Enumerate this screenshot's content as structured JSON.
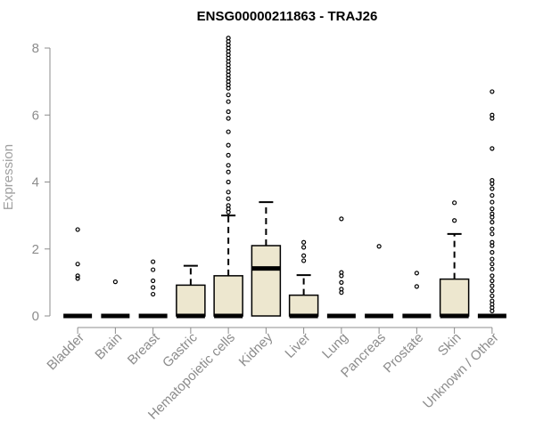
{
  "chart_data": {
    "type": "boxplot",
    "title": "ENSG00000211863 - TRAJ26",
    "xlabel": "",
    "ylabel": "Expression",
    "ylim": [
      0,
      8
    ],
    "yticks": [
      0,
      2,
      4,
      6,
      8
    ],
    "box_fill": "#ede7cf",
    "categories": [
      "Bladder",
      "Brain",
      "Breast",
      "Gastric",
      "Hematopoietic cells",
      "Kidney",
      "Liver",
      "Lung",
      "Pancreas",
      "Prostate",
      "Skin",
      "Unknown / Other"
    ],
    "groups": [
      {
        "name": "Bladder",
        "q1": 0,
        "median": 0,
        "q3": 0,
        "whisker_low": 0,
        "whisker_high": 0,
        "outliers": [
          2.58,
          1.55,
          1.2,
          1.12
        ]
      },
      {
        "name": "Brain",
        "q1": 0,
        "median": 0,
        "q3": 0,
        "whisker_low": 0,
        "whisker_high": 0,
        "outliers": [
          1.02
        ]
      },
      {
        "name": "Breast",
        "q1": 0,
        "median": 0,
        "q3": 0,
        "whisker_low": 0,
        "whisker_high": 0,
        "outliers": [
          1.62,
          1.38,
          1.05,
          0.85,
          0.65
        ]
      },
      {
        "name": "Gastric",
        "q1": 0,
        "median": 0,
        "q3": 0.92,
        "whisker_low": 0,
        "whisker_high": 1.5,
        "outliers": []
      },
      {
        "name": "Hematopoietic cells",
        "q1": 0,
        "median": 0,
        "q3": 1.2,
        "whisker_low": 0,
        "whisker_high": 3.0,
        "outliers": [
          3.1,
          3.2,
          3.3,
          3.5,
          3.7,
          4.0,
          4.3,
          4.5,
          4.8,
          5.1,
          5.5,
          5.9,
          6.1,
          6.4,
          6.6,
          6.8,
          6.9,
          7.0,
          7.1,
          7.2,
          7.3,
          7.4,
          7.5,
          7.6,
          7.7,
          7.8,
          7.9,
          8.0,
          8.1,
          8.2,
          8.3
        ]
      },
      {
        "name": "Kidney",
        "q1": 0,
        "median": 1.42,
        "q3": 2.1,
        "whisker_low": 0,
        "whisker_high": 3.4,
        "outliers": []
      },
      {
        "name": "Liver",
        "q1": 0,
        "median": 0,
        "q3": 0.62,
        "whisker_low": 0,
        "whisker_high": 1.22,
        "outliers": [
          2.2,
          2.05,
          1.8,
          1.65
        ]
      },
      {
        "name": "Lung",
        "q1": 0,
        "median": 0,
        "q3": 0,
        "whisker_low": 0,
        "whisker_high": 0,
        "outliers": [
          2.9,
          1.3,
          1.2,
          1.0,
          0.8,
          0.7
        ]
      },
      {
        "name": "Pancreas",
        "q1": 0,
        "median": 0,
        "q3": 0,
        "whisker_low": 0,
        "whisker_high": 0,
        "outliers": [
          2.08
        ]
      },
      {
        "name": "Prostate",
        "q1": 0,
        "median": 0,
        "q3": 0,
        "whisker_low": 0,
        "whisker_high": 0,
        "outliers": [
          1.28,
          0.88
        ]
      },
      {
        "name": "Skin",
        "q1": 0,
        "median": 0,
        "q3": 1.1,
        "whisker_low": 0,
        "whisker_high": 2.45,
        "outliers": [
          3.38,
          2.85
        ]
      },
      {
        "name": "Unknown / Other",
        "q1": 0,
        "median": 0,
        "q3": 0,
        "whisker_low": 0,
        "whisker_high": 0,
        "outliers": [
          6.7,
          6.0,
          5.9,
          5.0,
          4.05,
          3.95,
          3.8,
          3.6,
          3.4,
          3.2,
          3.05,
          2.95,
          2.8,
          2.6,
          2.45,
          2.2,
          2.1,
          1.9,
          1.7,
          1.55,
          1.4,
          1.2,
          1.05,
          0.9,
          0.75,
          0.6,
          0.45,
          0.35,
          0.25,
          0.15
        ]
      }
    ]
  }
}
